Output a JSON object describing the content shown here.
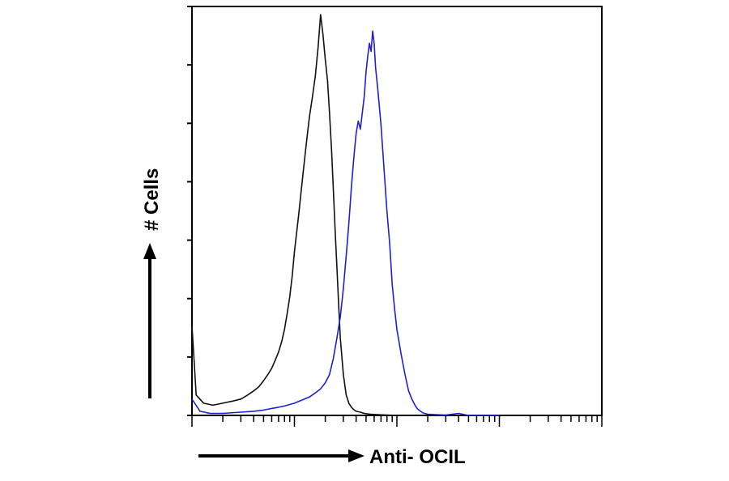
{
  "chart_data": {
    "type": "line",
    "title": "",
    "xlabel": "Anti- OCIL",
    "ylabel": "# Cells",
    "x_scale": "log",
    "xlim": [
      1,
      10000
    ],
    "ylim": [
      0,
      100
    ],
    "grid": false,
    "legend": "none",
    "series": [
      {
        "color": "#111111",
        "x": [
          1,
          1.1,
          1.3,
          1.6,
          2,
          2.5,
          3,
          3.5,
          4,
          4.5,
          5,
          5.5,
          6,
          6.5,
          7,
          7.5,
          8,
          8.5,
          9,
          9.5,
          10,
          11,
          12,
          13,
          14,
          15,
          16,
          17,
          18,
          19,
          20,
          21,
          22,
          23,
          24,
          25,
          26,
          27,
          28,
          30,
          32,
          34,
          36,
          38,
          40,
          44,
          48,
          55,
          65,
          80,
          100
        ],
        "y": [
          22,
          5,
          3,
          2.5,
          3,
          3.5,
          4,
          5,
          6,
          7,
          8.5,
          10,
          11.5,
          13.5,
          15.5,
          18,
          21,
          25,
          29,
          34,
          40,
          49,
          58,
          66,
          73,
          78,
          83,
          90,
          98,
          93,
          87,
          82,
          74,
          65,
          55,
          45,
          36,
          27,
          19,
          10,
          5,
          3,
          2,
          1.4,
          1,
          0.8,
          0.5,
          0.3,
          0.2,
          0.1,
          0
        ]
      },
      {
        "color": "#1f1fd6",
        "x": [
          1,
          1.2,
          1.5,
          2,
          3,
          4,
          5,
          6,
          7,
          8,
          10,
          12,
          14,
          16,
          18,
          20,
          22,
          24,
          26,
          28,
          30,
          32,
          34,
          36,
          38,
          40,
          42,
          44,
          46,
          48,
          50,
          52,
          54,
          56,
          58,
          60,
          62,
          65,
          70,
          75,
          80,
          85,
          90,
          95,
          100,
          110,
          120,
          130,
          140,
          150,
          160,
          170,
          180,
          200,
          240,
          300,
          400,
          500,
          1000
        ],
        "y": [
          4,
          1,
          0.5,
          0.5,
          0.8,
          1,
          1.3,
          1.7,
          2,
          2.3,
          3,
          3.8,
          4.5,
          5.5,
          6.5,
          8,
          10,
          14,
          19,
          24,
          31,
          39,
          47,
          56,
          63,
          69,
          72,
          70,
          74,
          78,
          84,
          88,
          91,
          89,
          94,
          91,
          85,
          80,
          71,
          60,
          50,
          42,
          32,
          26,
          21,
          15,
          10,
          6,
          4,
          2.5,
          1.5,
          1,
          0.6,
          0.3,
          0.2,
          0.1,
          0.5,
          0,
          0
        ]
      }
    ]
  }
}
